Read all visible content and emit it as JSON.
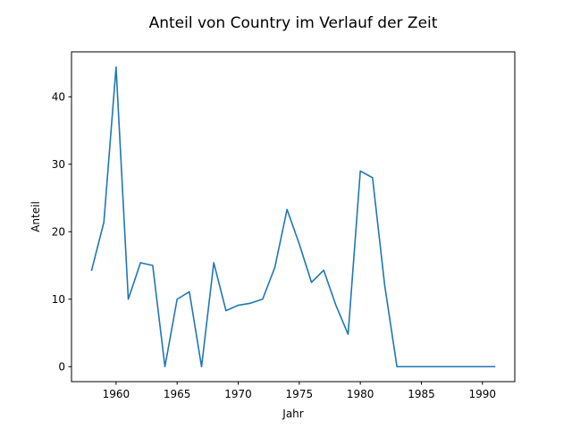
{
  "chart_data": {
    "type": "line",
    "title": "Anteil von Country im Verlauf der Zeit",
    "xlabel": "Jahr",
    "ylabel": "Anteil",
    "xlim": [
      1956.35,
      1992.65
    ],
    "ylim": [
      -2.22,
      46.66
    ],
    "xticks": [
      1960,
      1965,
      1970,
      1975,
      1980,
      1985,
      1990
    ],
    "yticks": [
      0,
      10,
      20,
      30,
      40
    ],
    "grid": false,
    "legend": "none",
    "series": [
      {
        "color": "#1f77b4",
        "x": [
          1958,
          1959,
          1960,
          1961,
          1962,
          1963,
          1964,
          1965,
          1966,
          1967,
          1968,
          1969,
          1970,
          1971,
          1972,
          1973,
          1974,
          1975,
          1976,
          1977,
          1978,
          1979,
          1980,
          1981,
          1982,
          1983,
          1984,
          1985,
          1986,
          1987,
          1988,
          1989,
          1990,
          1991
        ],
        "y": [
          14.3,
          21.4,
          44.4,
          10.0,
          15.4,
          15.0,
          0.0,
          10.0,
          11.1,
          0.0,
          15.4,
          8.3,
          9.1,
          9.4,
          10.0,
          14.7,
          23.3,
          18.2,
          12.5,
          14.3,
          9.1,
          4.8,
          29.0,
          28.0,
          12.0,
          0.0,
          0.0,
          0.0,
          0.0,
          0.0,
          0.0,
          0.0,
          0.0,
          0.0
        ]
      }
    ]
  }
}
